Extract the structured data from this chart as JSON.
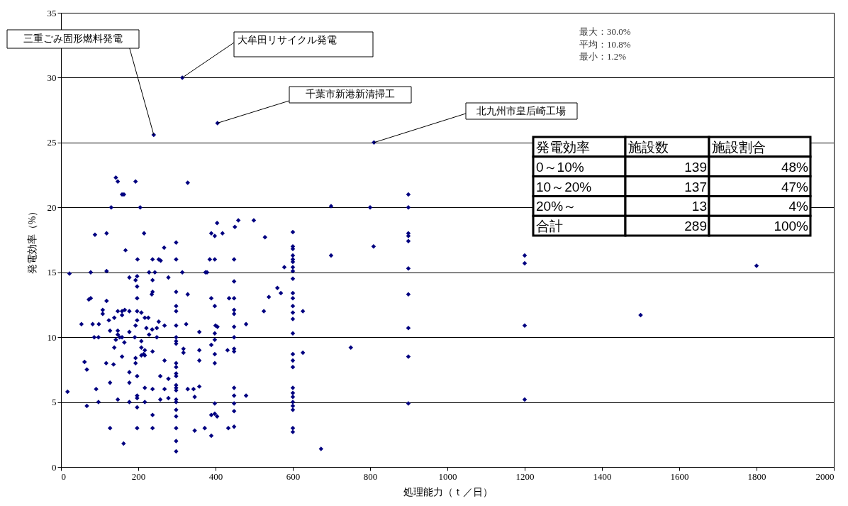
{
  "chart_data": {
    "type": "scatter",
    "xlabel": "処理能力（ｔ／日）",
    "ylabel": "発電効率（%）",
    "xlim": [
      0,
      2000
    ],
    "xticks": [
      0,
      200,
      400,
      600,
      800,
      1000,
      1200,
      1400,
      1600,
      1800,
      2000
    ],
    "ylim": [
      0,
      35
    ],
    "yticks": [
      0,
      5,
      10,
      15,
      20,
      25,
      30,
      35
    ],
    "grid": "y",
    "marker": "diamond",
    "series": [
      {
        "color": "#000080",
        "x": [
          142,
          147,
          193,
          328,
          158,
          163,
          130,
          205,
          88,
          118,
          215,
          298,
          267,
          167,
          198,
          237,
          253,
          258,
          298,
          22,
          77,
          118,
          228,
          243,
          314,
          177,
          197,
          193,
          237,
          278,
          197,
          237,
          235,
          298,
          328,
          197,
          72,
          77,
          118,
          298,
          298,
          108,
          108,
          147,
          158,
          165,
          177,
          197,
          208,
          158,
          124,
          138,
          197,
          217,
          226,
          253,
          53,
          82,
          98,
          193,
          221,
          236,
          248,
          268,
          298,
          324,
          127,
          177,
          147,
          147,
          152,
          142,
          158,
          228,
          191,
          86,
          97,
          248,
          164,
          208,
          298,
          298,
          298,
          138,
          208,
          217,
          214,
          217,
          208,
          237,
          317,
          317,
          158,
          193,
          193,
          61,
          117,
          136,
          67,
          268,
          298,
          298,
          298,
          298,
          177,
          197,
          257,
          278,
          127,
          177,
          298,
          298,
          298,
          17,
          91,
          217,
          237,
          268,
          328,
          343,
          346,
          147,
          197,
          197,
          278,
          257,
          97,
          177,
          217,
          298,
          298,
          298,
          298,
          67,
          197,
          237,
          127,
          197,
          237,
          298,
          346,
          162,
          298,
          298,
          404,
          459,
          499,
          450,
          389,
          398,
          418,
          528,
          600,
          600,
          600,
          600,
          600,
          600,
          600,
          600,
          600,
          385,
          398,
          448,
          578,
          374,
          378,
          448,
          560,
          569,
          538,
          389,
          435,
          448,
          398,
          448,
          448,
          600,
          600,
          600,
          600,
          600,
          525,
          626,
          358,
          400,
          405,
          398,
          398,
          448,
          479,
          448,
          600,
          389,
          358,
          431,
          448,
          448,
          398,
          358,
          398,
          600,
          600,
          600,
          626,
          358,
          448,
          448,
          448,
          448,
          479,
          398,
          389,
          398,
          404,
          600,
          600,
          600,
          600,
          600,
          600,
          600,
          600,
          372,
          389,
          433,
          448,
          673,
          699,
          800,
          899,
          899,
          899,
          899,
          899,
          809,
          699,
          899,
          899,
          899,
          750,
          899,
          899,
          1200,
          1200,
          1200,
          1200,
          1500,
          1800,
          240,
          314,
          405,
          810
        ],
        "values": [
          22.3,
          22,
          22,
          21.9,
          21,
          21,
          20,
          20,
          17.9,
          18,
          18,
          17.3,
          16.9,
          16.7,
          16,
          16,
          16,
          15.9,
          16,
          14.9,
          15,
          15.1,
          15,
          15,
          15,
          14.6,
          14.7,
          14.4,
          14.4,
          14.6,
          13.9,
          13.5,
          13.3,
          13.5,
          13.3,
          13,
          12.9,
          13,
          12.8,
          12.4,
          12,
          12.1,
          11.8,
          12,
          12,
          12.1,
          12,
          12,
          11.9,
          11.7,
          11.3,
          11.5,
          11.3,
          11.5,
          11.5,
          11.2,
          11,
          11,
          11,
          10.9,
          10.7,
          10.6,
          10.7,
          10.9,
          10.9,
          11,
          10.5,
          10.4,
          10.5,
          10.2,
          10,
          9.8,
          10,
          10.2,
          10,
          10,
          10,
          10,
          9.6,
          9.7,
          10,
          9.7,
          9.5,
          9.2,
          9.2,
          9,
          8.7,
          8.6,
          8.6,
          8.9,
          9.1,
          8.8,
          8.5,
          8.4,
          8,
          8.1,
          8,
          7.9,
          7.5,
          8.2,
          8,
          7.7,
          7.2,
          7,
          7.3,
          7,
          7,
          6.8,
          6.5,
          6.5,
          6.3,
          6.1,
          5.9,
          5.8,
          6,
          6.1,
          6,
          6,
          6,
          6,
          5.4,
          5.2,
          5.5,
          5.3,
          5.3,
          5.2,
          5,
          5,
          5,
          5.2,
          5,
          4.4,
          3.9,
          4.7,
          4.6,
          4,
          3,
          3,
          3,
          3,
          2.8,
          1.8,
          2,
          1.2,
          18.8,
          19,
          19,
          18.5,
          18,
          17.8,
          18,
          17.7,
          18.1,
          17,
          16.8,
          16.3,
          16,
          15.8,
          15.4,
          15.1,
          14.5,
          16,
          16,
          16,
          15.4,
          15,
          15,
          14.3,
          13.8,
          13.4,
          13.1,
          13,
          13,
          13,
          12.4,
          12.1,
          11.8,
          13.4,
          13,
          12.4,
          11.9,
          11.4,
          12,
          12,
          10.4,
          10.9,
          10.8,
          10.3,
          9.8,
          10.8,
          11,
          10,
          10.3,
          9.4,
          9,
          9,
          9.1,
          8.9,
          8.7,
          8.2,
          8,
          8.7,
          8.2,
          7.7,
          8.8,
          6.2,
          6.1,
          5.5,
          4.9,
          4.3,
          5.5,
          4.9,
          4,
          4.1,
          3.9,
          6.1,
          5.7,
          5.4,
          5,
          4.7,
          4.4,
          3,
          2.7,
          3,
          2.4,
          3,
          3.1,
          1.4,
          20.1,
          20,
          20,
          21,
          18,
          17.8,
          17.4,
          17,
          16.3,
          15.3,
          13.3,
          10.7,
          9.2,
          8.5,
          4.9,
          16.3,
          15.7,
          10.9,
          5.2,
          11.7,
          15.5,
          25.6,
          30,
          26.5,
          25
        ]
      }
    ],
    "annotations": [
      {
        "text": "三重ごみ固形燃料発電",
        "x": 240,
        "y": 25.6
      },
      {
        "text": "大牟田リサイクル発電",
        "x": 314,
        "y": 30
      },
      {
        "text": "千葉市新港新清掃工",
        "x": 405,
        "y": 26.5
      },
      {
        "text": "北九州市皇后崎工場",
        "x": 810,
        "y": 25
      },
      "最大：30.0%",
      "平均：10.8%",
      "最小：1.2%",
      "発電効率",
      "施設数",
      "施設割合",
      "0～10%",
      "139",
      "48%",
      "10～20%",
      "137",
      "47%",
      "20%～",
      "13",
      "4%",
      "合計",
      "289",
      "100%"
    ]
  }
}
